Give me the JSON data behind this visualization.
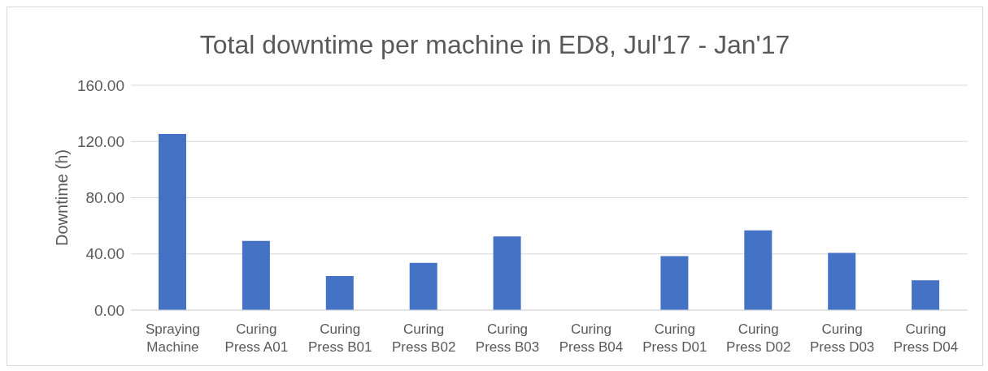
{
  "chart_data": {
    "type": "bar",
    "title": "Total downtime per machine in ED8, Jul'17 - Jan'17",
    "ylabel": "Downtime (h)",
    "categories": [
      "Spraying Machine",
      "Curing Press A01",
      "Curing Press B01",
      "Curing Press B02",
      "Curing Press B03",
      "Curing Press B04",
      "Curing Press D01",
      "Curing Press D02",
      "Curing Press D03",
      "Curing Press D04"
    ],
    "values": [
      125.4,
      49.3,
      24.2,
      33.7,
      52.4,
      0,
      38.4,
      56.7,
      40.7,
      21.2
    ],
    "color": "#4472c4",
    "ylim": [
      0,
      160
    ],
    "yticks": [
      {
        "value": 0,
        "label": "0.00"
      },
      {
        "value": 40,
        "label": "40.00"
      },
      {
        "value": 80,
        "label": "80.00"
      },
      {
        "value": 120,
        "label": "120.00"
      },
      {
        "value": 160,
        "label": "160.00"
      }
    ],
    "grid": "y",
    "legend": false
  }
}
